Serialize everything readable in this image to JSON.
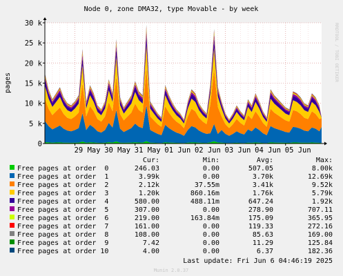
{
  "chart_data": {
    "type": "area",
    "stacked": true,
    "title": "Node 0, zone DMA32, type Movable - by week",
    "ylabel": "pages",
    "watermark": "RRDTOOL / TOBI OETIKER",
    "ylim": [
      0,
      30000
    ],
    "yticks": [
      {
        "value": 0,
        "label": "0"
      },
      {
        "value": 5000,
        "label": "5 k"
      },
      {
        "value": 10000,
        "label": "10 k"
      },
      {
        "value": 15000,
        "label": "15 k"
      },
      {
        "value": 20000,
        "label": "20 k"
      },
      {
        "value": 25000,
        "label": "25 k"
      },
      {
        "value": 30000,
        "label": "30 k"
      }
    ],
    "xlim": [
      "2025-05-28T00:00",
      "2025-06-06T04:46"
    ],
    "xticks": [
      {
        "value": "2025-05-29T00:00",
        "label": "29 May"
      },
      {
        "value": "2025-05-30T00:00",
        "label": "30 May"
      },
      {
        "value": "2025-05-31T00:00",
        "label": "31 May"
      },
      {
        "value": "2025-06-01T00:00",
        "label": "01 Jun"
      },
      {
        "value": "2025-06-02T00:00",
        "label": "02 Jun"
      },
      {
        "value": "2025-06-03T00:00",
        "label": "03 Jun"
      },
      {
        "value": "2025-06-04T00:00",
        "label": "04 Jun"
      },
      {
        "value": "2025-06-05T00:00",
        "label": "05 Jun"
      }
    ],
    "grid": true,
    "legend_headers": {
      "cur": "Cur:",
      "min": "Min:",
      "avg": "Avg:",
      "max": "Max:"
    },
    "series": [
      {
        "name": "Free pages at order  0",
        "color": "#00CC00",
        "cur": "246.03",
        "min": "0.00",
        "avg": "507.05",
        "max": "8.00k"
      },
      {
        "name": "Free pages at order  1",
        "color": "#0066B3",
        "cur": "3.99k",
        "min": "0.00",
        "avg": "3.70k",
        "max": "12.69k"
      },
      {
        "name": "Free pages at order  2",
        "color": "#FF8000",
        "cur": "2.12k",
        "min": "37.55m",
        "avg": "3.41k",
        "max": "9.52k"
      },
      {
        "name": "Free pages at order  3",
        "color": "#FFCC00",
        "cur": "1.20k",
        "min": "860.16m",
        "avg": "1.76k",
        "max": "5.79k"
      },
      {
        "name": "Free pages at order  4",
        "color": "#330099",
        "cur": "580.00",
        "min": "488.11m",
        "avg": "647.24",
        "max": "1.92k"
      },
      {
        "name": "Free pages at order  5",
        "color": "#990099",
        "cur": "307.00",
        "min": "0.00",
        "avg": "278.90",
        "max": "707.11"
      },
      {
        "name": "Free pages at order  6",
        "color": "#CCFF00",
        "cur": "219.00",
        "min": "163.84m",
        "avg": "175.09",
        "max": "365.95"
      },
      {
        "name": "Free pages at order  7",
        "color": "#FF0000",
        "cur": "161.00",
        "min": "0.00",
        "avg": "119.33",
        "max": "272.16"
      },
      {
        "name": "Free pages at order  8",
        "color": "#808080",
        "cur": "108.00",
        "min": "0.00",
        "avg": "85.63",
        "max": "169.00"
      },
      {
        "name": "Free pages at order  9",
        "color": "#008F00",
        "cur": "7.42",
        "min": "0.00",
        "avg": "11.29",
        "max": "125.84"
      },
      {
        "name": "Free pages at order 10",
        "color": "#00487D",
        "cur": "4.00",
        "min": "0.00",
        "avg": "6.37",
        "max": "182.36"
      }
    ],
    "last_update": "Last update: Fri Jun  6 04:46:19 2025",
    "footer": "Munin 2.0.37",
    "profile": {
      "x": [
        "2025-05-28T00:00",
        "2025-05-28T03:00",
        "2025-05-28T06:00",
        "2025-05-28T09:00",
        "2025-05-28T12:00",
        "2025-05-28T15:00",
        "2025-05-28T18:00",
        "2025-05-28T21:00",
        "2025-05-29T00:00",
        "2025-05-29T03:00",
        "2025-05-29T06:00",
        "2025-05-29T09:00",
        "2025-05-29T12:00",
        "2025-05-29T15:00",
        "2025-05-29T18:00",
        "2025-05-29T21:00",
        "2025-05-30T00:00",
        "2025-05-30T03:00",
        "2025-05-30T06:00",
        "2025-05-30T09:00",
        "2025-05-30T12:00",
        "2025-05-30T15:00",
        "2025-05-30T18:00",
        "2025-05-30T21:00",
        "2025-05-31T00:00",
        "2025-05-31T03:00",
        "2025-05-31T06:00",
        "2025-05-31T09:00",
        "2025-05-31T12:00",
        "2025-05-31T15:00",
        "2025-05-31T18:00",
        "2025-05-31T21:00",
        "2025-06-01T00:00",
        "2025-06-01T03:00",
        "2025-06-01T06:00",
        "2025-06-01T09:00",
        "2025-06-01T12:00",
        "2025-06-01T15:00",
        "2025-06-01T18:00",
        "2025-06-01T21:00",
        "2025-06-02T00:00",
        "2025-06-02T03:00",
        "2025-06-02T06:00",
        "2025-06-02T09:00",
        "2025-06-02T12:00",
        "2025-06-02T15:00",
        "2025-06-02T18:00",
        "2025-06-02T21:00",
        "2025-06-03T00:00",
        "2025-06-03T03:00",
        "2025-06-03T06:00",
        "2025-06-03T09:00",
        "2025-06-03T12:00",
        "2025-06-03T15:00",
        "2025-06-03T18:00",
        "2025-06-03T21:00",
        "2025-06-04T00:00",
        "2025-06-04T03:00",
        "2025-06-04T06:00",
        "2025-06-04T09:00",
        "2025-06-04T12:00",
        "2025-06-04T15:00",
        "2025-06-04T18:00",
        "2025-06-04T21:00",
        "2025-06-05T00:00",
        "2025-06-05T03:00",
        "2025-06-05T06:00",
        "2025-06-05T09:00",
        "2025-06-05T12:00",
        "2025-06-05T15:00",
        "2025-06-05T18:00",
        "2025-06-05T21:00",
        "2025-06-06T00:00",
        "2025-06-06T03:00",
        "2025-06-06T04:46"
      ],
      "total": [
        17500,
        13500,
        11000,
        12500,
        14000,
        11500,
        10000,
        9500,
        10500,
        12000,
        23500,
        10500,
        14500,
        12500,
        9500,
        8500,
        10500,
        16000,
        12500,
        26000,
        11500,
        9000,
        10500,
        12000,
        15500,
        13000,
        12000,
        29500,
        10500,
        9000,
        7500,
        6500,
        14500,
        12000,
        10000,
        8500,
        7500,
        6000,
        10500,
        13500,
        12500,
        10000,
        8500,
        7500,
        15000,
        28500,
        14000,
        10500,
        7500,
        6000,
        7500,
        9500,
        8000,
        7000,
        11000,
        9500,
        12500,
        10500,
        8000,
        6500,
        13500,
        12000,
        11000,
        10000,
        9000,
        8500,
        13000,
        12500,
        11500,
        10000,
        9500,
        12500,
        11500,
        9500,
        6500
      ],
      "f1": [
        0.3,
        0.3,
        0.3,
        0.3,
        0.3,
        0.3,
        0.3,
        0.3,
        0.3,
        0.3,
        0.3,
        0.3,
        0.3,
        0.3,
        0.3,
        0.3,
        0.3,
        0.3,
        0.3,
        0.3,
        0.3,
        0.3,
        0.3,
        0.3,
        0.3,
        0.3,
        0.3,
        0.3,
        0.3,
        0.3,
        0.3,
        0.3,
        0.3,
        0.3,
        0.3,
        0.3,
        0.3,
        0.3,
        0.3,
        0.3,
        0.3,
        0.3,
        0.3,
        0.3,
        0.15,
        0.15,
        0.15,
        0.3,
        0.3,
        0.3,
        0.3,
        0.3,
        0.3,
        0.3,
        0.3,
        0.3,
        0.3,
        0.3,
        0.3,
        0.3,
        0.3,
        0.3,
        0.3,
        0.3,
        0.3,
        0.3,
        0.3,
        0.3,
        0.3,
        0.3,
        0.3,
        0.3,
        0.3,
        0.3,
        0.62
      ],
      "f2": [
        0.32,
        0.32,
        0.32,
        0.32,
        0.32,
        0.32,
        0.32,
        0.32,
        0.32,
        0.32,
        0.32,
        0.32,
        0.32,
        0.32,
        0.32,
        0.32,
        0.32,
        0.32,
        0.32,
        0.32,
        0.32,
        0.32,
        0.32,
        0.32,
        0.32,
        0.32,
        0.32,
        0.32,
        0.32,
        0.32,
        0.32,
        0.32,
        0.32,
        0.32,
        0.32,
        0.32,
        0.32,
        0.32,
        0.32,
        0.32,
        0.32,
        0.32,
        0.32,
        0.32,
        0.48,
        0.48,
        0.48,
        0.32,
        0.32,
        0.32,
        0.32,
        0.32,
        0.32,
        0.32,
        0.32,
        0.32,
        0.32,
        0.32,
        0.32,
        0.32,
        0.32,
        0.32,
        0.32,
        0.32,
        0.32,
        0.32,
        0.32,
        0.32,
        0.32,
        0.32,
        0.32,
        0.32,
        0.32,
        0.32,
        0.33
      ]
    }
  }
}
